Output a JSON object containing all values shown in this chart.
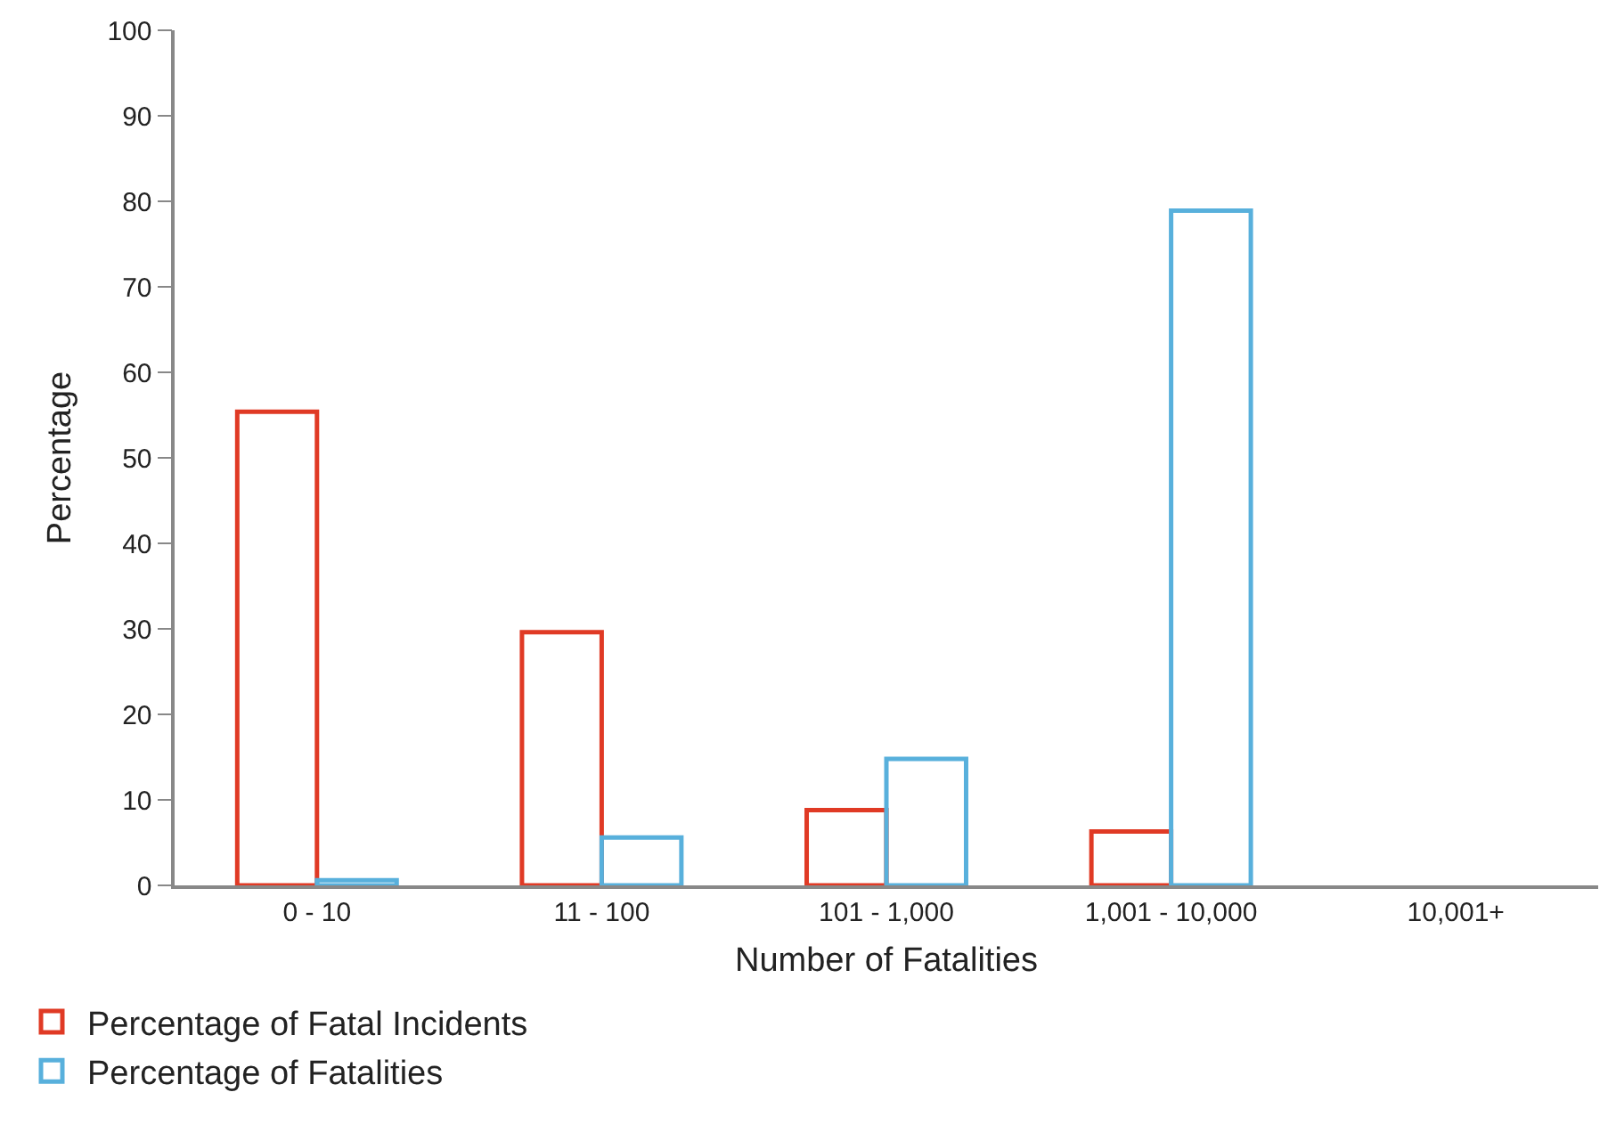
{
  "chart_data": {
    "type": "bar",
    "xlabel": "Number of Fatalities",
    "ylabel": "Percentage",
    "categories": [
      "0 - 10",
      "11 - 100",
      "101 - 1,000",
      "1,001 - 10,000",
      "10,001+"
    ],
    "series": [
      {
        "name": "Percentage of Fatal Incidents",
        "color": "#e03a25",
        "values": [
          55.4,
          29.6,
          8.8,
          6.3,
          null
        ]
      },
      {
        "name": "Percentage of Fatalities",
        "color": "#58b0dc",
        "values": [
          0.6,
          5.6,
          14.8,
          78.9,
          null
        ]
      }
    ],
    "ylim": [
      0,
      100
    ],
    "yticks": [
      0,
      10,
      20,
      30,
      40,
      50,
      60,
      70,
      80,
      90,
      100
    ],
    "legend": "bottom left"
  }
}
